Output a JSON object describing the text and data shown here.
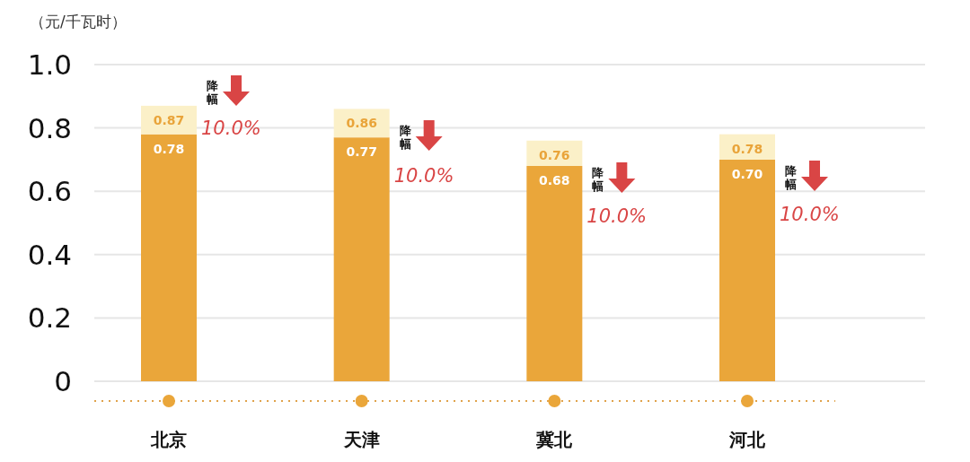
{
  "chart_data": {
    "type": "bar",
    "ylabel": "（元/千瓦时）",
    "categories": [
      "北京",
      "天津",
      "冀北",
      "河北"
    ],
    "series": [
      {
        "color": "#eaa63a",
        "values": [
          0.78,
          0.77,
          0.68,
          0.7
        ],
        "value_labels": [
          "0.78",
          "0.77",
          "0.68",
          "0.70"
        ]
      },
      {
        "color": "#fbf0c8",
        "values": [
          0.09,
          0.09,
          0.08,
          0.08
        ]
      }
    ],
    "totals": [
      "0.87",
      "0.86",
      "0.76",
      "0.78"
    ],
    "stacked": true,
    "ylim": [
      0,
      1.0
    ],
    "yticks": [
      0,
      0.2,
      0.4,
      0.6,
      0.8,
      {
        "value": 1.0,
        "label": "1.0"
      }
    ],
    "grid": "y",
    "annotations": [
      "降幅",
      "10.0%",
      "降幅",
      "10.0%",
      "降幅",
      "10.0%",
      "降幅",
      "10.0%"
    ]
  }
}
